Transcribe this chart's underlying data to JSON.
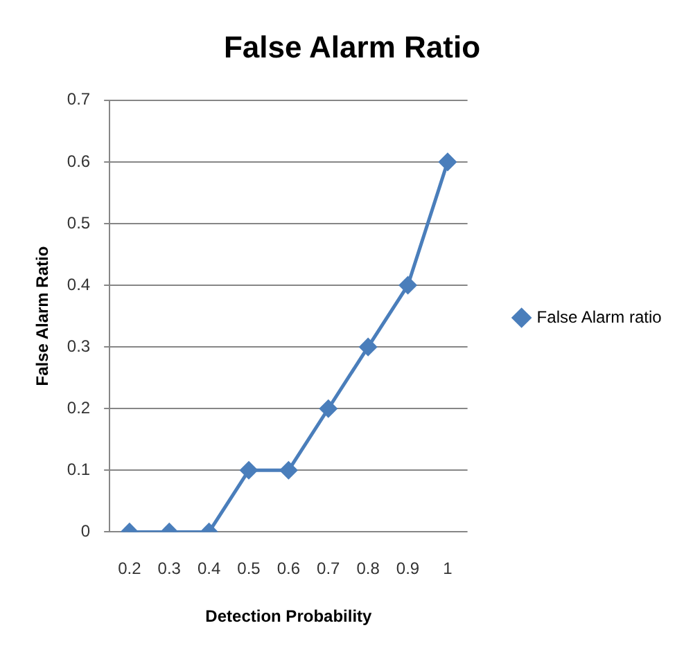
{
  "chart_data": {
    "type": "line",
    "title": "False Alarm Ratio",
    "xlabel": "Detection Probability",
    "ylabel": "False Alarm Ratio",
    "categories": [
      "0.2",
      "0.3",
      "0.4",
      "0.5",
      "0.6",
      "0.7",
      "0.8",
      "0.9",
      "1"
    ],
    "series": [
      {
        "name": "False Alarm ratio",
        "color": "#4a7ebb",
        "values": [
          0,
          0,
          0,
          0.1,
          0.1,
          0.2,
          0.3,
          0.4,
          0.6
        ]
      }
    ],
    "ylim": [
      0,
      0.7
    ],
    "yticks": [
      0,
      0.1,
      0.2,
      0.3,
      0.4,
      0.5,
      0.6,
      0.7
    ],
    "grid": "y",
    "legend": "right",
    "marker": "diamond",
    "line_style": "solid"
  }
}
